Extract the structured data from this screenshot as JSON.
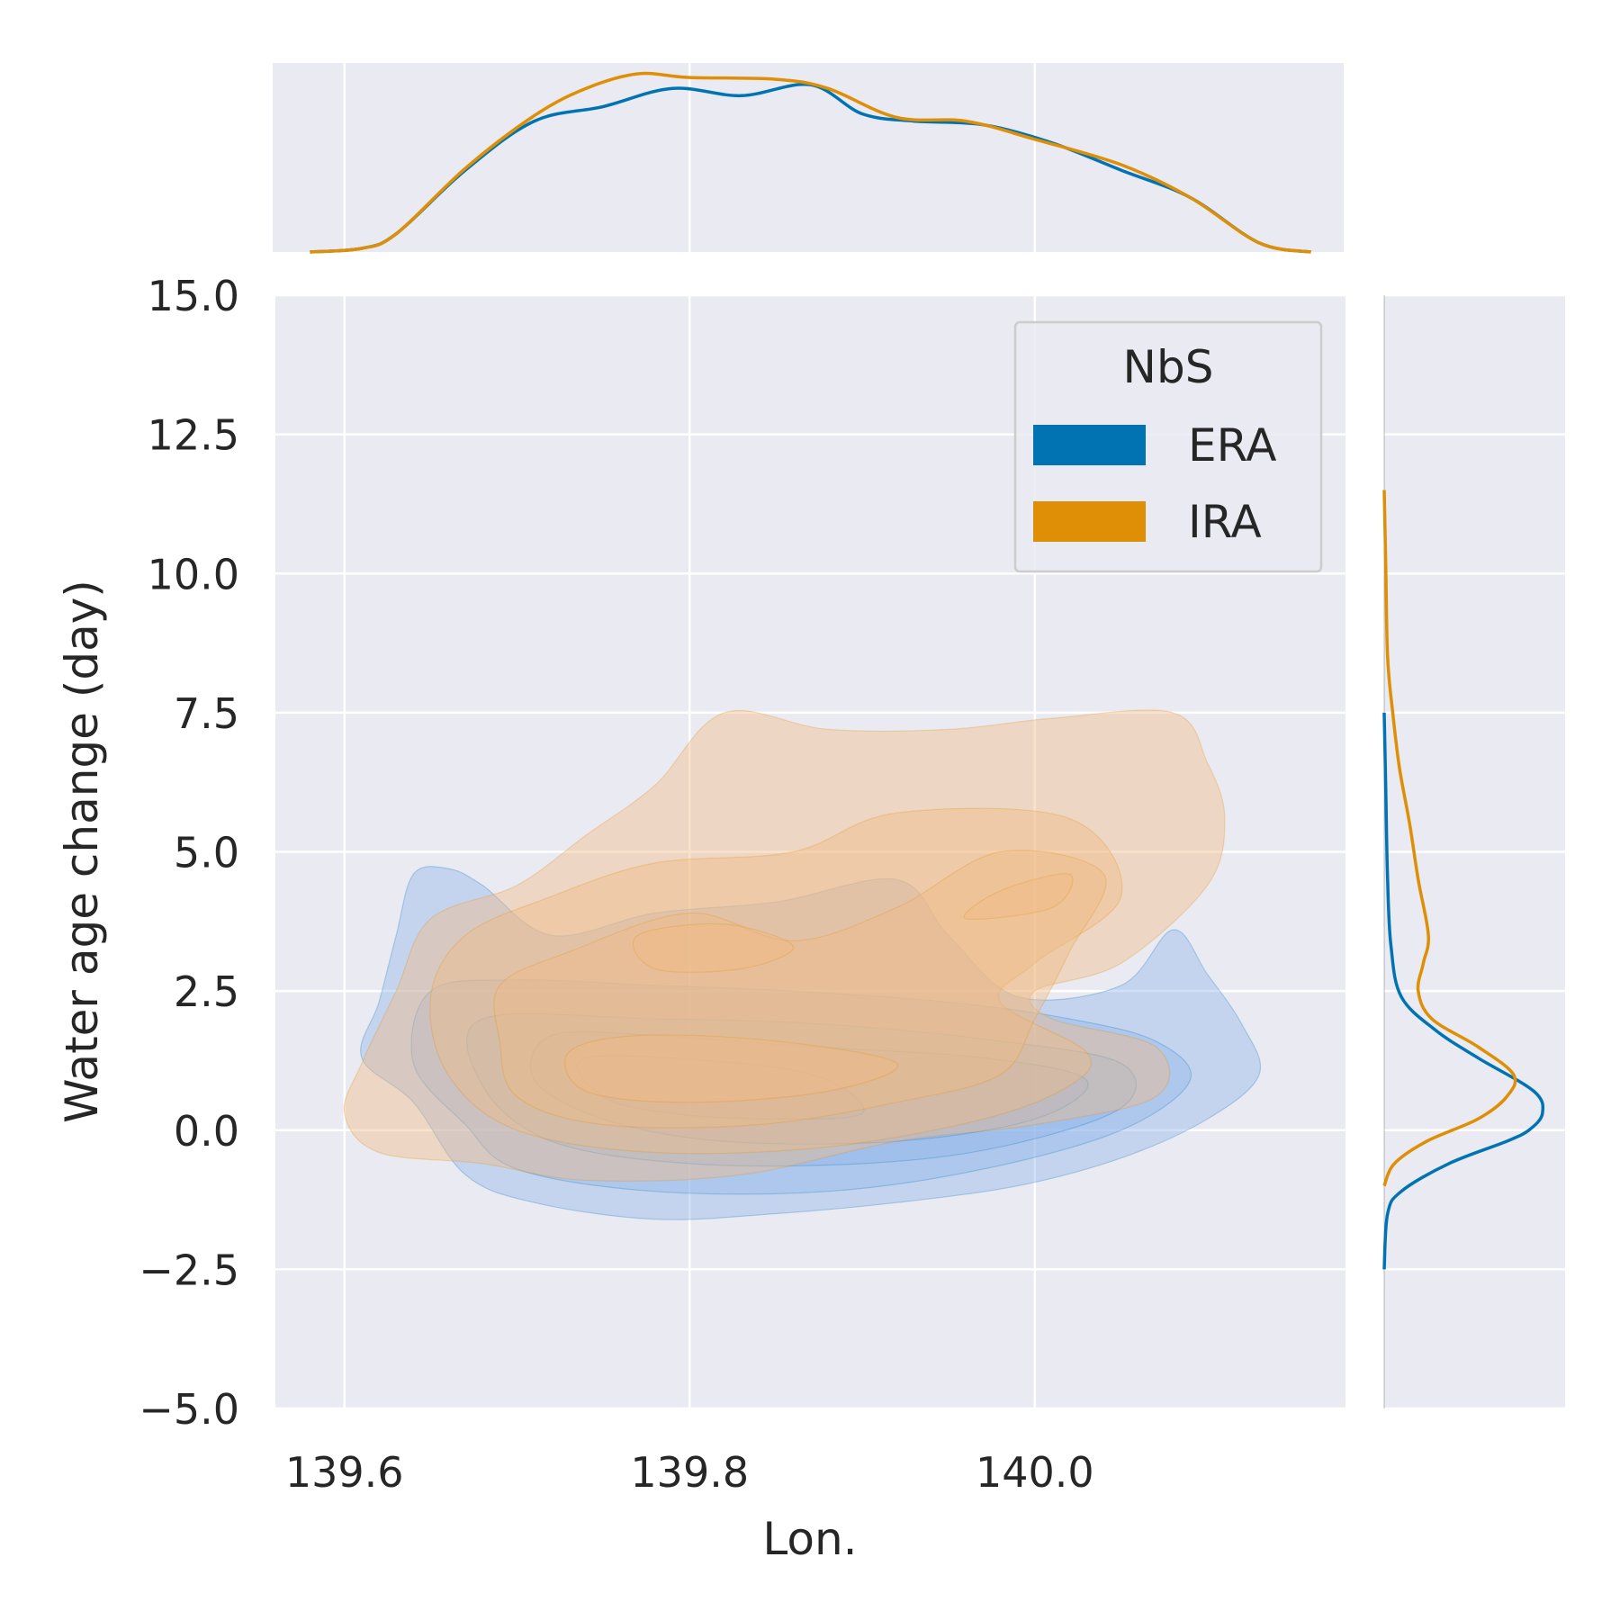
{
  "chart_data": {
    "type": "kde-joint",
    "xlabel": "Lon.",
    "ylabel": "Water age change (day)",
    "xlim": [
      139.56,
      140.18
    ],
    "ylim": [
      -5.0,
      15.0
    ],
    "xticks": [
      139.6,
      139.8,
      140.0
    ],
    "xtick_labels": [
      "139.6",
      "139.8",
      "140.0"
    ],
    "yticks": [
      -5.0,
      -2.5,
      0.0,
      2.5,
      5.0,
      7.5,
      10.0,
      12.5,
      15.0
    ],
    "ytick_labels": [
      "−5.0",
      "−2.5",
      "0.0",
      "2.5",
      "5.0",
      "7.5",
      "10.0",
      "12.5",
      "15.0"
    ],
    "grid": true,
    "legend": {
      "title": "NbS",
      "position": "top-right",
      "entries": [
        "ERA",
        "IRA"
      ]
    },
    "colors": {
      "ERA": "#0173b2",
      "IRA": "#de8f05",
      "ERA_fill": "#8fb6ea",
      "IRA_fill": "#f0b982",
      "axes_bg": "#eaeaf2",
      "grid": "#ffffff"
    },
    "series": [
      {
        "name": "ERA",
        "marginal_x": {
          "x": [
            139.58,
            139.61,
            139.63,
            139.67,
            139.71,
            139.75,
            139.79,
            139.83,
            139.87,
            139.9,
            139.93,
            139.97,
            140.01,
            140.05,
            140.09,
            140.13,
            140.16
          ],
          "density": [
            0.0,
            0.02,
            0.1,
            0.45,
            0.72,
            0.8,
            0.9,
            0.86,
            0.92,
            0.76,
            0.72,
            0.7,
            0.6,
            0.45,
            0.3,
            0.05,
            0.0
          ]
        },
        "marginal_y": {
          "y": [
            -2.5,
            -1.5,
            -1.1,
            -0.6,
            -0.2,
            0.0,
            0.3,
            0.7,
            1.3,
            1.8,
            2.4,
            3.3,
            4.5,
            6.0,
            7.5
          ],
          "density": [
            0.0,
            0.02,
            0.1,
            0.38,
            0.72,
            0.85,
            0.93,
            0.88,
            0.55,
            0.3,
            0.1,
            0.04,
            0.02,
            0.01,
            0.0
          ]
        },
        "joint_contours": [
          {
            "level": 1,
            "points": [
              [
                139.64,
                4.6
              ],
              [
                139.63,
                3.5
              ],
              [
                139.62,
                2.3
              ],
              [
                139.61,
                1.3
              ],
              [
                139.64,
                0.5
              ],
              [
                139.67,
                -0.8
              ],
              [
                139.71,
                -1.3
              ],
              [
                139.78,
                -1.6
              ],
              [
                139.85,
                -1.5
              ],
              [
                139.92,
                -1.3
              ],
              [
                139.99,
                -1.0
              ],
              [
                140.05,
                -0.5
              ],
              [
                140.1,
                0.2
              ],
              [
                140.13,
                1.0
              ],
              [
                140.12,
                1.9
              ],
              [
                140.1,
                2.8
              ],
              [
                140.08,
                3.6
              ],
              [
                140.05,
                2.6
              ],
              [
                139.99,
                2.4
              ],
              [
                139.95,
                3.5
              ],
              [
                139.92,
                4.5
              ],
              [
                139.85,
                4.1
              ],
              [
                139.78,
                3.9
              ],
              [
                139.72,
                3.5
              ],
              [
                139.68,
                4.4
              ],
              [
                139.66,
                4.7
              ]
            ]
          },
          {
            "level": 2,
            "points": [
              [
                139.65,
                2.5
              ],
              [
                139.64,
                1.2
              ],
              [
                139.67,
                0.1
              ],
              [
                139.7,
                -0.7
              ],
              [
                139.78,
                -1.1
              ],
              [
                139.88,
                -1.1
              ],
              [
                139.97,
                -0.7
              ],
              [
                140.05,
                0.0
              ],
              [
                140.09,
                0.9
              ],
              [
                140.07,
                1.6
              ],
              [
                140.02,
                2.0
              ],
              [
                139.95,
                2.3
              ],
              [
                139.86,
                2.5
              ],
              [
                139.78,
                2.6
              ],
              [
                139.7,
                2.7
              ]
            ]
          },
          {
            "level": 3,
            "points": [
              [
                139.68,
                2.0
              ],
              [
                139.68,
                0.8
              ],
              [
                139.72,
                -0.2
              ],
              [
                139.8,
                -0.6
              ],
              [
                139.9,
                -0.6
              ],
              [
                139.98,
                -0.3
              ],
              [
                140.05,
                0.4
              ],
              [
                140.05,
                1.2
              ],
              [
                139.98,
                1.6
              ],
              [
                139.88,
                1.9
              ],
              [
                139.78,
                2.0
              ]
            ]
          },
          {
            "level": 4,
            "points": [
              [
                139.72,
                1.7
              ],
              [
                139.71,
                0.9
              ],
              [
                139.75,
                0.2
              ],
              [
                139.82,
                -0.2
              ],
              [
                139.92,
                -0.2
              ],
              [
                140.0,
                0.2
              ],
              [
                140.03,
                0.9
              ],
              [
                139.97,
                1.3
              ],
              [
                139.87,
                1.5
              ],
              [
                139.78,
                1.7
              ]
            ]
          },
          {
            "level": 5,
            "points": [
              [
                139.74,
                1.3
              ],
              [
                139.75,
                0.6
              ],
              [
                139.79,
                0.3
              ],
              [
                139.85,
                0.2
              ],
              [
                139.9,
                0.3
              ],
              [
                139.88,
                0.9
              ],
              [
                139.83,
                1.2
              ]
            ]
          }
        ]
      },
      {
        "name": "IRA",
        "marginal_x": {
          "x": [
            139.58,
            139.61,
            139.63,
            139.67,
            139.71,
            139.74,
            139.77,
            139.8,
            139.85,
            139.88,
            139.92,
            139.96,
            140.0,
            140.05,
            140.09,
            140.13,
            140.16
          ],
          "density": [
            0.0,
            0.02,
            0.1,
            0.46,
            0.75,
            0.9,
            0.98,
            0.96,
            0.95,
            0.9,
            0.74,
            0.72,
            0.62,
            0.48,
            0.3,
            0.05,
            0.0
          ]
        },
        "marginal_y": {
          "y": [
            -1.0,
            -0.6,
            -0.2,
            0.2,
            0.6,
            1.0,
            1.5,
            2.0,
            2.5,
            3.0,
            3.5,
            4.5,
            5.5,
            6.5,
            7.5,
            8.5,
            10.0,
            11.5
          ],
          "density": [
            0.0,
            0.06,
            0.25,
            0.55,
            0.72,
            0.76,
            0.55,
            0.28,
            0.2,
            0.23,
            0.26,
            0.2,
            0.15,
            0.09,
            0.05,
            0.02,
            0.01,
            0.0
          ]
        },
        "joint_contours": [
          {
            "level": 1,
            "points": [
              [
                139.61,
                1.2
              ],
              [
                139.63,
                2.5
              ],
              [
                139.65,
                3.8
              ],
              [
                139.7,
                4.4
              ],
              [
                139.74,
                5.3
              ],
              [
                139.78,
                6.2
              ],
              [
                139.82,
                7.5
              ],
              [
                139.88,
                7.2
              ],
              [
                139.95,
                7.2
              ],
              [
                140.01,
                7.4
              ],
              [
                140.08,
                7.5
              ],
              [
                140.1,
                6.6
              ],
              [
                140.11,
                5.6
              ],
              [
                140.1,
                4.4
              ],
              [
                140.05,
                3.0
              ],
              [
                140.0,
                2.5
              ],
              [
                140.01,
                2.0
              ],
              [
                140.07,
                1.5
              ],
              [
                140.07,
                0.6
              ],
              [
                140.0,
                0.1
              ],
              [
                139.92,
                -0.2
              ],
              [
                139.83,
                -0.8
              ],
              [
                139.74,
                -0.9
              ],
              [
                139.68,
                -0.6
              ],
              [
                139.62,
                -0.4
              ],
              [
                139.6,
                0.3
              ]
            ]
          },
          {
            "level": 2,
            "points": [
              [
                139.65,
                2.4
              ],
              [
                139.66,
                1.0
              ],
              [
                139.7,
                0.0
              ],
              [
                139.78,
                -0.4
              ],
              [
                139.88,
                -0.3
              ],
              [
                139.97,
                0.2
              ],
              [
                140.02,
                0.8
              ],
              [
                140.03,
                1.4
              ],
              [
                139.98,
                2.3
              ],
              [
                140.0,
                3.0
              ],
              [
                140.05,
                4.2
              ],
              [
                140.02,
                5.6
              ],
              [
                139.92,
                5.7
              ],
              [
                139.86,
                5.0
              ],
              [
                139.78,
                4.8
              ],
              [
                139.72,
                4.2
              ],
              [
                139.67,
                3.5
              ]
            ]
          },
          {
            "level": 3,
            "points": [
              [
                139.69,
                1.6
              ],
              [
                139.7,
                0.6
              ],
              [
                139.75,
                0.1
              ],
              [
                139.84,
                0.1
              ],
              [
                139.92,
                0.5
              ],
              [
                139.98,
                1.0
              ],
              [
                140.0,
                2.0
              ],
              [
                140.02,
                3.2
              ],
              [
                140.04,
                4.6
              ],
              [
                139.98,
                5.0
              ],
              [
                139.92,
                4.0
              ],
              [
                139.86,
                3.4
              ],
              [
                139.8,
                3.9
              ],
              [
                139.73,
                3.2
              ],
              [
                139.69,
                2.6
              ]
            ]
          },
          {
            "level": 4,
            "points": [
              [
                139.73,
                1.4
              ],
              [
                139.74,
                0.7
              ],
              [
                139.8,
                0.5
              ],
              [
                139.88,
                0.7
              ],
              [
                139.92,
                1.2
              ],
              [
                139.85,
                1.6
              ],
              [
                139.77,
                1.7
              ]
            ]
          },
          {
            "level": 5,
            "points": [
              [
                139.77,
                3.5
              ],
              [
                139.78,
                2.9
              ],
              [
                139.83,
                2.9
              ],
              [
                139.86,
                3.3
              ],
              [
                139.82,
                3.7
              ]
            ]
          },
          {
            "level": 5,
            "points": [
              [
                139.96,
                3.8
              ],
              [
                139.98,
                4.3
              ],
              [
                140.02,
                4.6
              ],
              [
                140.01,
                4.0
              ]
            ]
          }
        ]
      }
    ]
  }
}
